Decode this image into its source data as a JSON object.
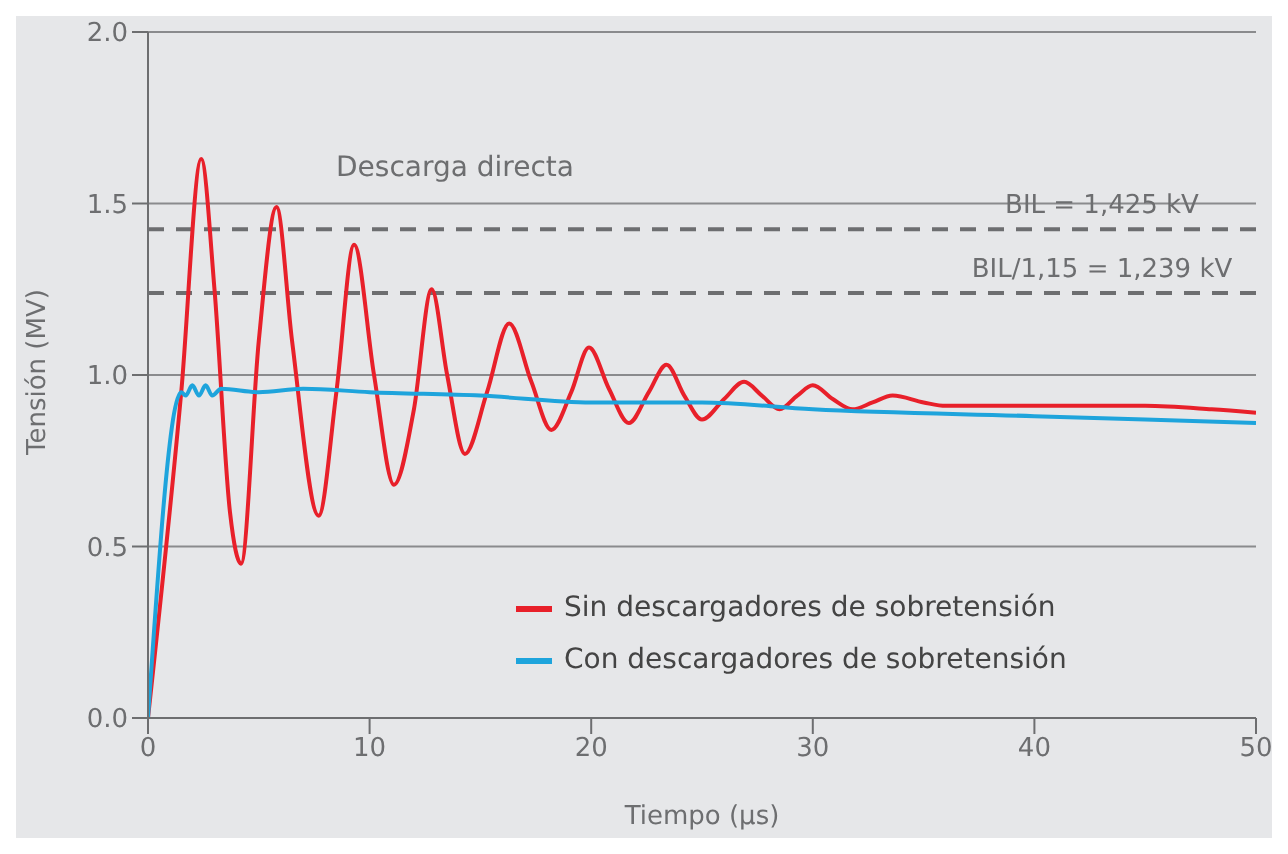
{
  "chart_data": {
    "type": "line",
    "xlabel": "Tiempo (µs)",
    "ylabel": "Tensión (MV)",
    "xlim": [
      0,
      50
    ],
    "xticks": [
      0,
      10,
      20,
      30,
      40,
      50
    ],
    "ylim": [
      0,
      2
    ],
    "yticks": [
      {
        "value": 0,
        "label": "0.0"
      },
      0.5,
      {
        "value": 1,
        "label": "1.0"
      },
      1.5,
      {
        "value": 2,
        "label": "2.0"
      }
    ],
    "grid": "y",
    "legend": "bottom",
    "line_style": "solid",
    "marker": "none",
    "series": [
      {
        "name": "Sin descargadores de sobretensión",
        "color": "#e8202a",
        "x": [
          0,
          1.5,
          2.4,
          3.0,
          3.7,
          4.2,
          5.0,
          5.8,
          6.5,
          7.7,
          8.5,
          9.3,
          10.2,
          11.1,
          12.0,
          12.8,
          13.5,
          14.3,
          15.3,
          16.3,
          17.3,
          18.2,
          19.1,
          19.9,
          20.8,
          21.7,
          22.6,
          23.4,
          24.2,
          25,
          26,
          26.9,
          27.7,
          28.5,
          29.3,
          30,
          30.9,
          31.8,
          32.7,
          33.6,
          35,
          36,
          40,
          45,
          48,
          50
        ],
        "values": [
          0,
          0.95,
          1.63,
          1.25,
          0.6,
          0.45,
          1.1,
          1.49,
          1.1,
          0.59,
          0.95,
          1.38,
          1.0,
          0.68,
          0.9,
          1.25,
          1.0,
          0.77,
          0.95,
          1.15,
          0.98,
          0.84,
          0.95,
          1.08,
          0.96,
          0.86,
          0.95,
          1.03,
          0.94,
          0.87,
          0.93,
          0.98,
          0.94,
          0.9,
          0.94,
          0.97,
          0.93,
          0.9,
          0.92,
          0.94,
          0.92,
          0.91,
          0.91,
          0.91,
          0.9,
          0.89
        ]
      },
      {
        "name": "Con descargadores de sobretensión",
        "color": "#1ea4dc",
        "x": [
          0,
          1.5,
          1.7,
          2.0,
          2.3,
          2.6,
          2.9,
          3.3,
          5,
          7,
          10,
          15,
          20,
          25,
          30,
          40,
          50
        ],
        "values": [
          0,
          0.95,
          0.94,
          0.97,
          0.94,
          0.97,
          0.94,
          0.96,
          0.95,
          0.96,
          0.95,
          0.94,
          0.92,
          0.92,
          0.9,
          0.88,
          0.86
        ]
      }
    ],
    "ref_lines": [
      {
        "axis": "y",
        "value": 1.425,
        "label": "BIL = 1,425 kV",
        "color": "#6d6e70",
        "line_style": "dashed"
      },
      {
        "axis": "y",
        "value": 1.239,
        "label": "BIL/1,15 = 1,239 kV",
        "color": "#6d6e70",
        "line_style": "dashed"
      }
    ],
    "annotations": [
      "Descarga directa"
    ]
  }
}
